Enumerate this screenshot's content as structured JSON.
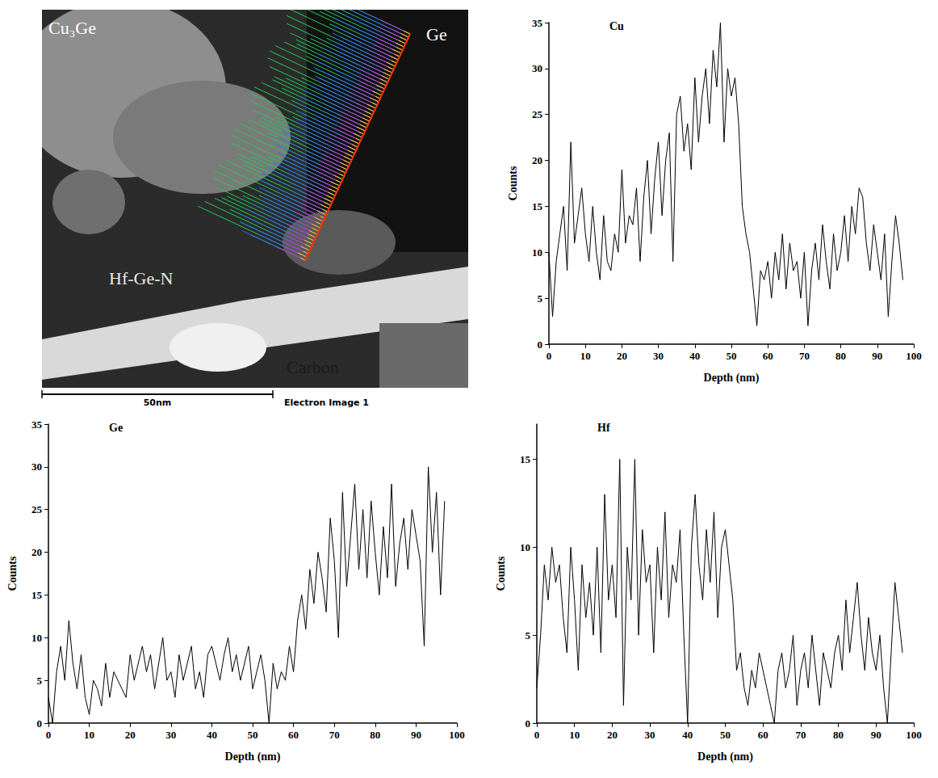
{
  "image": {
    "labels": [
      "Cu₃Ge",
      "Ge",
      "Hf-Ge-N",
      "Carbon"
    ],
    "scale_bar": "50nm",
    "caption": "Electron Image 1"
  },
  "chart_data": [
    {
      "type": "line",
      "title": "Cu",
      "x_label": "Depth (nm)",
      "y_label": "Counts",
      "color": "#000000",
      "grid": false,
      "xlim": [
        0,
        100
      ],
      "xticks": [
        0,
        10,
        20,
        30,
        40,
        50,
        60,
        70,
        80,
        90,
        100
      ],
      "ylim": [
        0,
        35
      ],
      "yticks": [
        0,
        5,
        10,
        15,
        20,
        25,
        30,
        35
      ],
      "x": [
        0,
        1,
        2,
        3,
        4,
        5,
        6,
        7,
        8,
        9,
        10,
        11,
        12,
        13,
        14,
        15,
        16,
        17,
        18,
        19,
        20,
        21,
        22,
        23,
        24,
        25,
        26,
        27,
        28,
        29,
        30,
        31,
        32,
        33,
        34,
        35,
        36,
        37,
        38,
        39,
        40,
        41,
        42,
        43,
        44,
        45,
        46,
        47,
        48,
        49,
        50,
        51,
        52,
        53,
        54,
        55,
        56,
        57,
        58,
        59,
        60,
        61,
        62,
        63,
        64,
        65,
        66,
        67,
        68,
        69,
        70,
        71,
        72,
        73,
        74,
        75,
        76,
        77,
        78,
        79,
        80,
        81,
        82,
        83,
        84,
        85,
        86,
        87,
        88,
        89,
        90,
        91,
        92,
        93,
        94,
        95,
        96,
        97
      ],
      "values": [
        10,
        3,
        9,
        12,
        15,
        8,
        22,
        11,
        14,
        17,
        12,
        9,
        15,
        10,
        7,
        14,
        9,
        8,
        12,
        10,
        19,
        11,
        14,
        13,
        17,
        9,
        16,
        20,
        12,
        18,
        22,
        14,
        20,
        23,
        9,
        25,
        27,
        21,
        24,
        19,
        29,
        22,
        27,
        30,
        24,
        32,
        28,
        35,
        22,
        30,
        27,
        29,
        24,
        15,
        12,
        10,
        6,
        2,
        8,
        7,
        9,
        5,
        10,
        7,
        12,
        6,
        11,
        8,
        9,
        5,
        10,
        2,
        8,
        11,
        7,
        13,
        9,
        6,
        12,
        8,
        10,
        14,
        9,
        15,
        12,
        17,
        16,
        11,
        8,
        13,
        10,
        7,
        12,
        3,
        9,
        14,
        11,
        7
      ]
    },
    {
      "type": "line",
      "title": "Ge",
      "x_label": "Depth (nm)",
      "y_label": "Counts",
      "color": "#000000",
      "grid": false,
      "xlim": [
        0,
        100
      ],
      "xticks": [
        0,
        10,
        20,
        30,
        40,
        50,
        60,
        70,
        80,
        90,
        100
      ],
      "ylim": [
        0,
        35
      ],
      "yticks": [
        0,
        5,
        10,
        15,
        20,
        25,
        30,
        35
      ],
      "x": [
        0,
        1,
        2,
        3,
        4,
        5,
        6,
        7,
        8,
        9,
        10,
        11,
        12,
        13,
        14,
        15,
        16,
        17,
        18,
        19,
        20,
        21,
        22,
        23,
        24,
        25,
        26,
        27,
        28,
        29,
        30,
        31,
        32,
        33,
        34,
        35,
        36,
        37,
        38,
        39,
        40,
        41,
        42,
        43,
        44,
        45,
        46,
        47,
        48,
        49,
        50,
        51,
        52,
        53,
        54,
        55,
        56,
        57,
        58,
        59,
        60,
        61,
        62,
        63,
        64,
        65,
        66,
        67,
        68,
        69,
        70,
        71,
        72,
        73,
        74,
        75,
        76,
        77,
        78,
        79,
        80,
        81,
        82,
        83,
        84,
        85,
        86,
        87,
        88,
        89,
        90,
        91,
        92,
        93,
        94,
        95,
        96,
        97
      ],
      "values": [
        3,
        0,
        6,
        9,
        5,
        12,
        7,
        4,
        8,
        3,
        1,
        5,
        4,
        2,
        7,
        3,
        6,
        5,
        4,
        3,
        8,
        5,
        7,
        9,
        6,
        8,
        4,
        7,
        10,
        5,
        6,
        3,
        8,
        5,
        7,
        9,
        4,
        6,
        3,
        8,
        9,
        7,
        5,
        8,
        10,
        6,
        8,
        5,
        7,
        9,
        4,
        6,
        8,
        5,
        0,
        7,
        4,
        6,
        5,
        9,
        6,
        12,
        15,
        11,
        18,
        14,
        20,
        17,
        13,
        24,
        19,
        10,
        27,
        16,
        22,
        28,
        18,
        25,
        17,
        26,
        20,
        15,
        23,
        17,
        28,
        16,
        21,
        24,
        18,
        25,
        22,
        19,
        9,
        30,
        20,
        27,
        15,
        26
      ]
    },
    {
      "type": "line",
      "title": "Hf",
      "x_label": "Depth (nm)",
      "y_label": "Counts",
      "color": "#000000",
      "grid": false,
      "xlim": [
        0,
        100
      ],
      "xticks": [
        0,
        10,
        20,
        30,
        40,
        50,
        60,
        70,
        80,
        90,
        100
      ],
      "ylim": [
        0,
        17
      ],
      "yticks": [
        0,
        5,
        10,
        15
      ],
      "x": [
        0,
        1,
        2,
        3,
        4,
        5,
        6,
        7,
        8,
        9,
        10,
        11,
        12,
        13,
        14,
        15,
        16,
        17,
        18,
        19,
        20,
        21,
        22,
        23,
        24,
        25,
        26,
        27,
        28,
        29,
        30,
        31,
        32,
        33,
        34,
        35,
        36,
        37,
        38,
        39,
        40,
        41,
        42,
        43,
        44,
        45,
        46,
        47,
        48,
        49,
        50,
        51,
        52,
        53,
        54,
        55,
        56,
        57,
        58,
        59,
        60,
        61,
        62,
        63,
        64,
        65,
        66,
        67,
        68,
        69,
        70,
        71,
        72,
        73,
        74,
        75,
        76,
        77,
        78,
        79,
        80,
        81,
        82,
        83,
        84,
        85,
        86,
        87,
        88,
        89,
        90,
        91,
        92,
        93,
        94,
        95,
        96,
        97
      ],
      "values": [
        2,
        5,
        9,
        7,
        10,
        8,
        9,
        6,
        4,
        10,
        7,
        3,
        9,
        6,
        8,
        5,
        10,
        4,
        13,
        7,
        9,
        6,
        15,
        1,
        10,
        7,
        15,
        5,
        11,
        8,
        9,
        4,
        10,
        7,
        12,
        6,
        9,
        8,
        11,
        5,
        0,
        10,
        13,
        9,
        7,
        11,
        8,
        12,
        6,
        10,
        11,
        9,
        7,
        3,
        4,
        2,
        1,
        3,
        2,
        4,
        3,
        2,
        1,
        0,
        3,
        4,
        2,
        3,
        5,
        1,
        3,
        4,
        2,
        5,
        3,
        1,
        4,
        3,
        2,
        4,
        5,
        3,
        7,
        4,
        6,
        8,
        5,
        3,
        6,
        4,
        3,
        5,
        2,
        0,
        4,
        8,
        6,
        4
      ]
    }
  ]
}
